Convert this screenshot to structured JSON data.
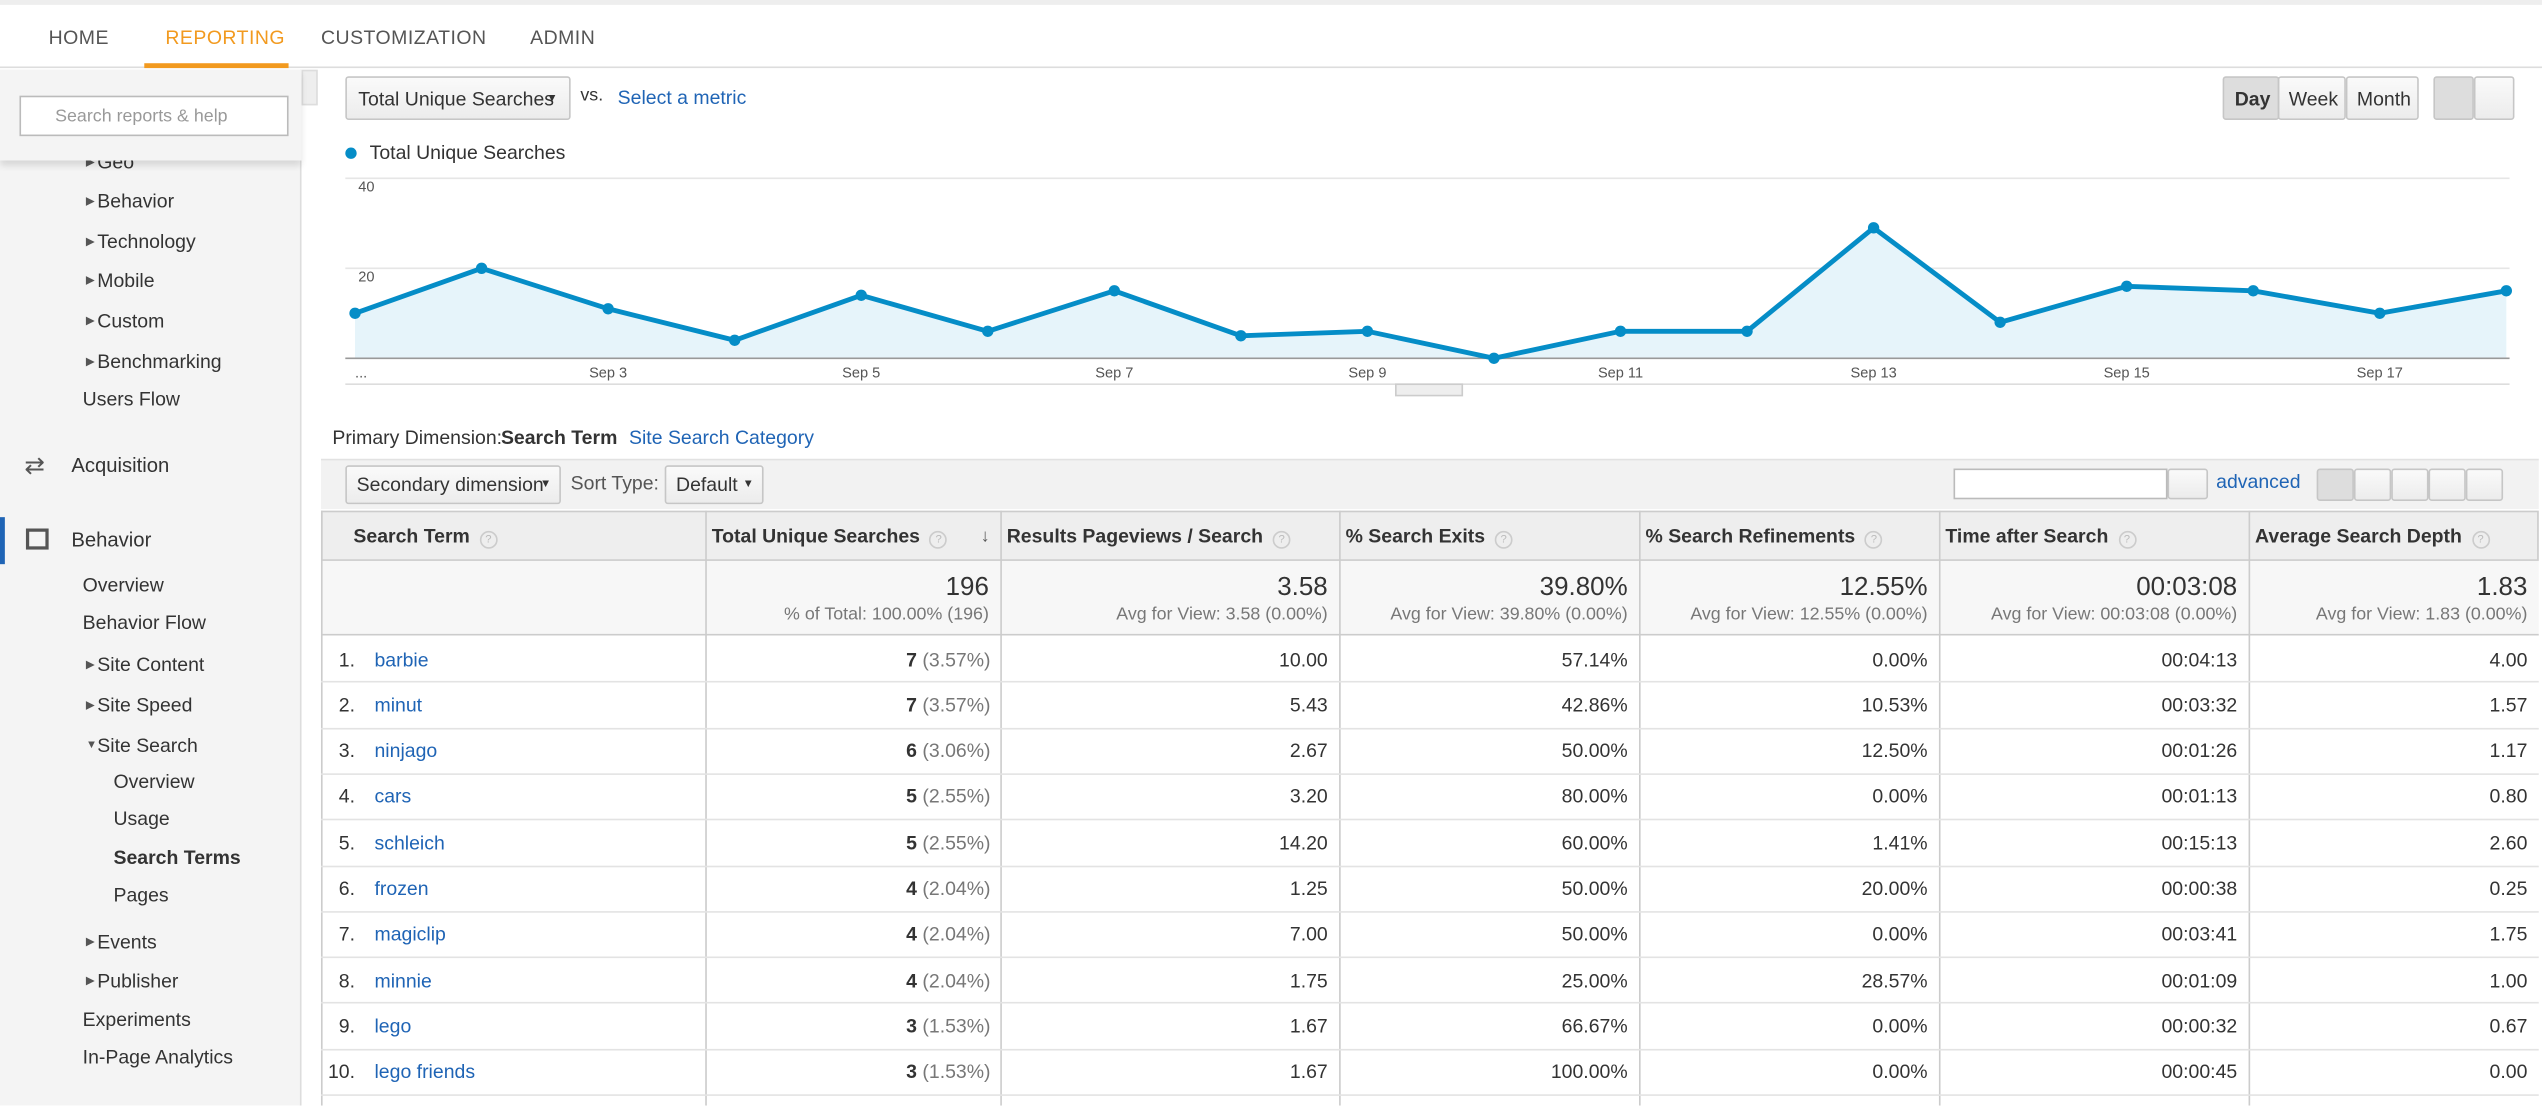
{
  "nav": {
    "tabs": [
      "HOME",
      "REPORTING",
      "CUSTOMIZATION",
      "ADMIN"
    ]
  },
  "sidebar": {
    "search_placeholder": "Search reports & help",
    "items": [
      "Geo",
      "Behavior",
      "Technology",
      "Mobile",
      "Custom",
      "Benchmarking",
      "Users Flow",
      "Acquisition",
      "Behavior",
      "Overview",
      "Behavior Flow",
      "Site Content",
      "Site Speed",
      "Site Search",
      "Overview",
      "Usage",
      "Search Terms",
      "Pages",
      "Events",
      "Publisher",
      "Experiments",
      "In-Page Analytics"
    ]
  },
  "controls": {
    "metric": "Total Unique Searches",
    "vs": "vs.",
    "select_metric": "Select a metric",
    "periods": [
      "Day",
      "Week",
      "Month"
    ]
  },
  "chart_data": {
    "type": "line",
    "series": [
      {
        "name": "Total Unique Searches",
        "color": "#058dc7",
        "values": [
          10,
          20,
          11,
          4,
          14,
          6,
          15,
          5,
          6,
          0,
          6,
          6,
          29,
          8,
          16,
          15,
          10,
          15
        ]
      }
    ],
    "categories": [
      "...",
      null,
      "Sep 3",
      null,
      "Sep 5",
      null,
      "Sep 7",
      null,
      "Sep 9",
      null,
      "Sep 11",
      null,
      "Sep 13",
      null,
      "Sep 15",
      null,
      "Sep 17",
      null
    ],
    "ylim": [
      0,
      40
    ],
    "yticks": [
      20,
      40
    ],
    "grid": true
  },
  "dimension": {
    "label": "Primary Dimension:",
    "active": "Search Term",
    "other": "Site Search Category"
  },
  "toolbar": {
    "secondary": "Secondary dimension",
    "sort_label": "Sort Type:",
    "sort_value": "Default",
    "advanced": "advanced"
  },
  "table": {
    "columns": [
      "Search Term",
      "Total Unique Searches",
      "Results Pageviews / Search",
      "% Search Exits",
      "% Search Refinements",
      "Time after Search",
      "Average Search Depth"
    ],
    "totals": [
      {
        "value": "196",
        "sub": "% of Total: 100.00% (196)"
      },
      {
        "value": "3.58",
        "sub": "Avg for View: 3.58 (0.00%)"
      },
      {
        "value": "39.80%",
        "sub": "Avg for View: 39.80% (0.00%)"
      },
      {
        "value": "12.55%",
        "sub": "Avg for View: 12.55% (0.00%)"
      },
      {
        "value": "00:03:08",
        "sub": "Avg for View: 00:03:08 (0.00%)"
      },
      {
        "value": "1.83",
        "sub": "Avg for View: 1.83 (0.00%)"
      }
    ],
    "rows": [
      [
        "1.",
        "barbie",
        "7",
        "(3.57%)",
        "10.00",
        "57.14%",
        "0.00%",
        "00:04:13",
        "4.00"
      ],
      [
        "2.",
        "minut",
        "7",
        "(3.57%)",
        "5.43",
        "42.86%",
        "10.53%",
        "00:03:32",
        "1.57"
      ],
      [
        "3.",
        "ninjago",
        "6",
        "(3.06%)",
        "2.67",
        "50.00%",
        "12.50%",
        "00:01:26",
        "1.17"
      ],
      [
        "4.",
        "cars",
        "5",
        "(2.55%)",
        "3.20",
        "80.00%",
        "0.00%",
        "00:01:13",
        "0.80"
      ],
      [
        "5.",
        "schleich",
        "5",
        "(2.55%)",
        "14.20",
        "60.00%",
        "1.41%",
        "00:15:13",
        "2.60"
      ],
      [
        "6.",
        "frozen",
        "4",
        "(2.04%)",
        "1.25",
        "50.00%",
        "20.00%",
        "00:00:38",
        "0.25"
      ],
      [
        "7.",
        "magiclip",
        "4",
        "(2.04%)",
        "7.00",
        "50.00%",
        "0.00%",
        "00:03:41",
        "1.75"
      ],
      [
        "8.",
        "minnie",
        "4",
        "(2.04%)",
        "1.75",
        "25.00%",
        "28.57%",
        "00:01:09",
        "1.00"
      ],
      [
        "9.",
        "lego",
        "3",
        "(1.53%)",
        "1.67",
        "66.67%",
        "0.00%",
        "00:00:32",
        "0.67"
      ],
      [
        "10.",
        "lego friends",
        "3",
        "(1.53%)",
        "1.67",
        "100.00%",
        "0.00%",
        "00:00:45",
        "0.00"
      ]
    ]
  }
}
